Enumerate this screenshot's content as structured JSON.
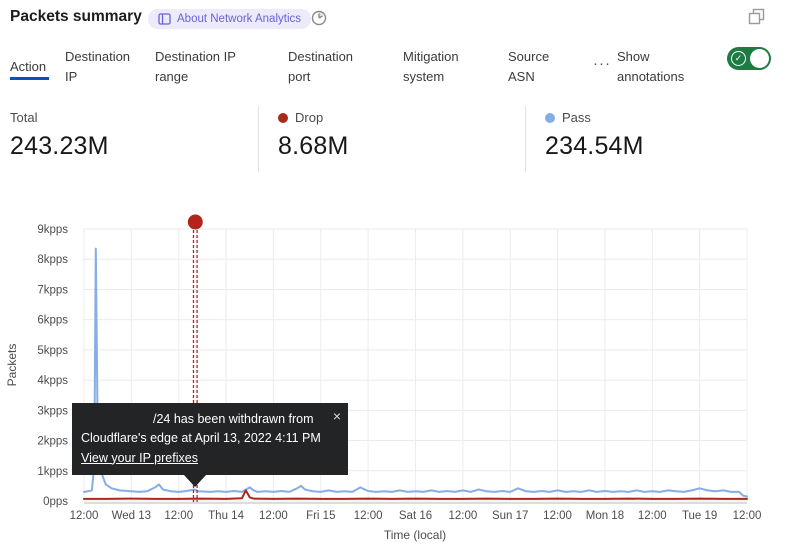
{
  "header": {
    "title": "Packets summary",
    "badge_label": "About Network Analytics",
    "icons": {
      "badge": "book-icon",
      "right_of_badge": "clock-icon",
      "top_right": "overlap-squares-expand-icon"
    }
  },
  "tabs": {
    "items": [
      {
        "label": "Action",
        "active": true
      },
      {
        "label": "Destination IP",
        "active": false
      },
      {
        "label": "Destination IP range",
        "active": false
      },
      {
        "label": "Destination port",
        "active": false
      },
      {
        "label": "Mitigation system",
        "active": false
      },
      {
        "label": "Source ASN",
        "active": false
      }
    ],
    "more_label": "···",
    "show_annotations_label": "Show annotations",
    "annotations_toggle_on": true,
    "toggle_check_glyph": "✓"
  },
  "stats": [
    {
      "label": "Total",
      "value": "243.23M",
      "dot_color": null
    },
    {
      "label": "Drop",
      "value": "8.68M",
      "dot_color": "#a82a1a"
    },
    {
      "label": "Pass",
      "value": "234.54M",
      "dot_color": "#85ade6"
    }
  ],
  "tooltip": {
    "line1": "/24 has been withdrawn from",
    "line2": "Cloudflare's edge at April 13, 2022 4:11 PM",
    "link_label": "View your IP prefixes",
    "close_glyph": "×"
  },
  "colors": {
    "accent_blue": "#0353bb",
    "toggle_green": "#1e7b44",
    "drop_red": "#a82a1a",
    "annotation_red": "#b3241b",
    "pass_blue": "#85ade6",
    "badge_bg": "#eceafb",
    "badge_text": "#6a63d2"
  },
  "chart_data": {
    "type": "line",
    "title": "Packets summary",
    "xlabel": "Time (local)",
    "ylabel": "Packets",
    "xticks": [
      "12:00",
      "Wed 13",
      "12:00",
      "Thu 14",
      "12:00",
      "Fri 15",
      "12:00",
      "Sat 16",
      "12:00",
      "Sun 17",
      "12:00",
      "Mon 18",
      "12:00",
      "Tue 19",
      "12:00"
    ],
    "yticks": [
      "0pps",
      "1kpps",
      "2kpps",
      "3kpps",
      "4kpps",
      "5kpps",
      "6kpps",
      "7kpps",
      "8kpps",
      "9kpps"
    ],
    "ylim": [
      0,
      9
    ],
    "xlim_hours": [
      0,
      168
    ],
    "grid": true,
    "legend_position": "top (stat cards)",
    "series": [
      {
        "name": "Pass",
        "color": "#85ade6",
        "total": "234.54M",
        "unit": "kpps",
        "points": [
          [
            0,
            0.3
          ],
          [
            1,
            0.32
          ],
          [
            2,
            0.35
          ],
          [
            2.6,
            1.2
          ],
          [
            3,
            8.35
          ],
          [
            3.4,
            3.2
          ],
          [
            3.8,
            1.3
          ],
          [
            4.5,
            0.9
          ],
          [
            5.5,
            0.55
          ],
          [
            7,
            0.42
          ],
          [
            9,
            0.35
          ],
          [
            12,
            0.32
          ],
          [
            14,
            0.3
          ],
          [
            16,
            0.32
          ],
          [
            18,
            0.45
          ],
          [
            19,
            0.55
          ],
          [
            20,
            0.38
          ],
          [
            22,
            0.32
          ],
          [
            24,
            0.3
          ],
          [
            26,
            0.33
          ],
          [
            28,
            0.38
          ],
          [
            29,
            0.32
          ],
          [
            32,
            0.3
          ],
          [
            34,
            0.32
          ],
          [
            36,
            0.3
          ],
          [
            38,
            0.33
          ],
          [
            40,
            0.3
          ],
          [
            42,
            0.45
          ],
          [
            43,
            0.35
          ],
          [
            44,
            0.3
          ],
          [
            46,
            0.32
          ],
          [
            48,
            0.3
          ],
          [
            50,
            0.33
          ],
          [
            52,
            0.3
          ],
          [
            54,
            0.42
          ],
          [
            55,
            0.5
          ],
          [
            56,
            0.38
          ],
          [
            58,
            0.32
          ],
          [
            60,
            0.3
          ],
          [
            62,
            0.35
          ],
          [
            64,
            0.3
          ],
          [
            66,
            0.32
          ],
          [
            68,
            0.3
          ],
          [
            70,
            0.45
          ],
          [
            72,
            0.33
          ],
          [
            74,
            0.3
          ],
          [
            76,
            0.32
          ],
          [
            78,
            0.3
          ],
          [
            80,
            0.35
          ],
          [
            82,
            0.3
          ],
          [
            84,
            0.32
          ],
          [
            86,
            0.3
          ],
          [
            88,
            0.35
          ],
          [
            90,
            0.3
          ],
          [
            92,
            0.33
          ],
          [
            94,
            0.3
          ],
          [
            96,
            0.35
          ],
          [
            98,
            0.3
          ],
          [
            100,
            0.38
          ],
          [
            102,
            0.32
          ],
          [
            104,
            0.3
          ],
          [
            106,
            0.33
          ],
          [
            108,
            0.3
          ],
          [
            110,
            0.42
          ],
          [
            112,
            0.32
          ],
          [
            114,
            0.3
          ],
          [
            116,
            0.33
          ],
          [
            118,
            0.3
          ],
          [
            120,
            0.35
          ],
          [
            122,
            0.3
          ],
          [
            124,
            0.32
          ],
          [
            126,
            0.3
          ],
          [
            128,
            0.35
          ],
          [
            130,
            0.3
          ],
          [
            132,
            0.33
          ],
          [
            134,
            0.3
          ],
          [
            136,
            0.32
          ],
          [
            138,
            0.3
          ],
          [
            140,
            0.35
          ],
          [
            142,
            0.3
          ],
          [
            144,
            0.32
          ],
          [
            146,
            0.3
          ],
          [
            148,
            0.35
          ],
          [
            150,
            0.32
          ],
          [
            152,
            0.3
          ],
          [
            154,
            0.35
          ],
          [
            156,
            0.42
          ],
          [
            158,
            0.35
          ],
          [
            160,
            0.32
          ],
          [
            162,
            0.35
          ],
          [
            164,
            0.3
          ],
          [
            166,
            0.3
          ],
          [
            167,
            0.18
          ],
          [
            168,
            0.15
          ]
        ]
      },
      {
        "name": "Drop",
        "color": "#a82a1a",
        "total": "8.68M",
        "unit": "kpps",
        "points": [
          [
            0,
            0.07
          ],
          [
            6,
            0.07
          ],
          [
            12,
            0.08
          ],
          [
            18,
            0.07
          ],
          [
            24,
            0.07
          ],
          [
            30,
            0.08
          ],
          [
            36,
            0.07
          ],
          [
            40,
            0.09
          ],
          [
            41,
            0.35
          ],
          [
            42,
            0.12
          ],
          [
            43,
            0.08
          ],
          [
            48,
            0.07
          ],
          [
            54,
            0.08
          ],
          [
            60,
            0.07
          ],
          [
            66,
            0.07
          ],
          [
            72,
            0.08
          ],
          [
            78,
            0.07
          ],
          [
            84,
            0.08
          ],
          [
            90,
            0.07
          ],
          [
            96,
            0.07
          ],
          [
            102,
            0.08
          ],
          [
            108,
            0.07
          ],
          [
            114,
            0.07
          ],
          [
            120,
            0.08
          ],
          [
            126,
            0.07
          ],
          [
            132,
            0.07
          ],
          [
            138,
            0.08
          ],
          [
            144,
            0.07
          ],
          [
            150,
            0.07
          ],
          [
            156,
            0.08
          ],
          [
            162,
            0.07
          ],
          [
            168,
            0.07
          ]
        ]
      }
    ],
    "annotation": {
      "x_hours": 28.2,
      "marker": "red-dot",
      "dashed_vertical_line": true,
      "text": "/24 has been withdrawn from Cloudflare's edge at April 13, 2022 4:11 PM",
      "link": "View your IP prefixes"
    }
  }
}
